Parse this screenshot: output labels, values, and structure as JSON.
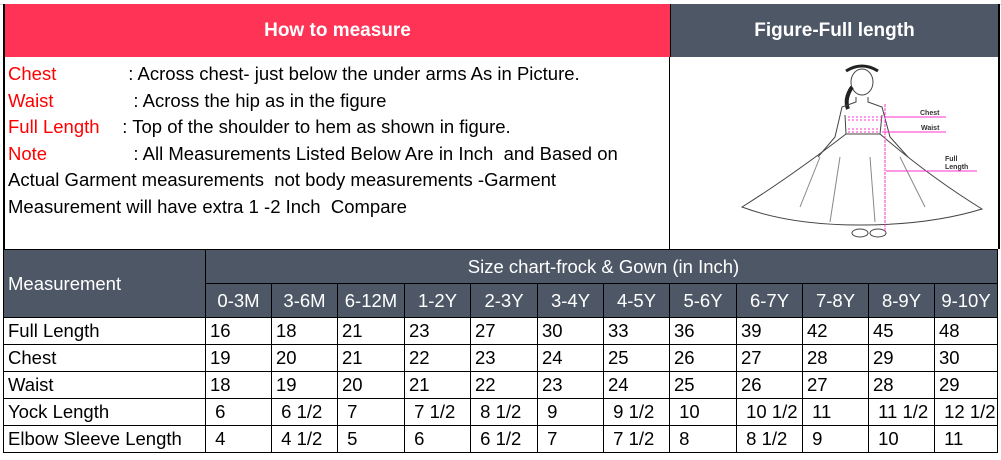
{
  "header": {
    "left_title": "How to measure",
    "right_title": "Figure-Full length"
  },
  "colors": {
    "red_header": "#ff3355",
    "dark_header": "#4d5766",
    "label_red": "#ff0000",
    "guide_pink": "#ff33cc"
  },
  "info": [
    {
      "label": "Chest",
      "text": "  : Across chest- just below the under arms As in Picture."
    },
    {
      "label": "Waist",
      "text": "   : Across the hip as in the figure"
    },
    {
      "label": "Full Length",
      "text": "  : Top of the shoulder to hem as shown in figure."
    },
    {
      "label": "Note",
      "text": "   : All Measurements Listed Below Are in Inch  and Based on"
    },
    {
      "label": "",
      "text": "Actual Garment measurements  not body measurements -Garment"
    },
    {
      "label": "",
      "text": "Measurement will have extra 1 -2 Inch  Compare"
    }
  ],
  "figure": {
    "labels": {
      "chest": "Chest",
      "waist": "Waist",
      "full1": "Full",
      "full2": "Length"
    }
  },
  "table": {
    "corner": "Measurement",
    "title": "Size chart-frock & Gown (in Inch)",
    "sizes": [
      "0-3M",
      "3-6M",
      "6-12M",
      "1-2Y",
      "2-3Y",
      "3-4Y",
      "4-5Y",
      "5-6Y",
      "6-7Y",
      "7-8Y",
      "8-9Y",
      "9-10Y"
    ],
    "rows": [
      {
        "name": "Full Length",
        "values": [
          "16",
          "18",
          "21",
          "23",
          "27",
          "30",
          "33",
          "36",
          "39",
          "42",
          "45",
          "48"
        ]
      },
      {
        "name": "Chest",
        "values": [
          "19",
          "20",
          "21",
          "22",
          "23",
          "24",
          "25",
          "26",
          "27",
          "28",
          "29",
          "30"
        ]
      },
      {
        "name": "Waist",
        "values": [
          "18",
          "19",
          "20",
          "21",
          "22",
          "23",
          "24",
          "25",
          "26",
          "27",
          "28",
          "29"
        ]
      },
      {
        "name": "Yock Length",
        "values": [
          " 6",
          " 6 1/2",
          " 7",
          " 7 1/2",
          " 8 1/2",
          " 9",
          " 9 1/2",
          " 10",
          " 10 1/2",
          " 11",
          " 11 1/2",
          " 12 1/2"
        ]
      },
      {
        "name": "Elbow Sleeve Length",
        "values": [
          " 4",
          " 4 1/2",
          " 5",
          " 6",
          " 6 1/2",
          " 7",
          " 7 1/2",
          " 8",
          " 8 1/2",
          " 9",
          " 10",
          " 11"
        ]
      }
    ]
  }
}
